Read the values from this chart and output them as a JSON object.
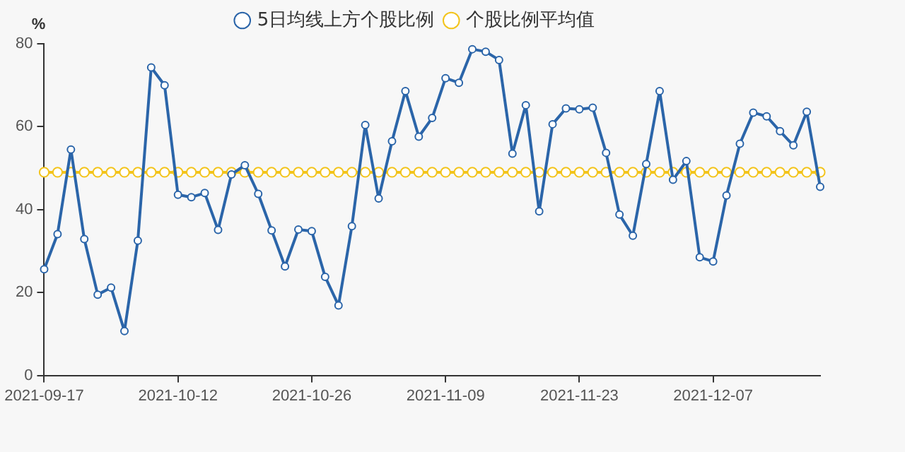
{
  "chart_data": {
    "type": "line",
    "ylabel": "%",
    "categories": [
      "2021-09-17",
      null,
      null,
      null,
      null,
      null,
      null,
      null,
      null,
      null,
      "2021-10-12",
      null,
      null,
      null,
      null,
      null,
      null,
      null,
      null,
      null,
      "2021-10-26",
      null,
      null,
      null,
      null,
      null,
      null,
      null,
      null,
      null,
      "2021-11-09",
      null,
      null,
      null,
      null,
      null,
      null,
      null,
      null,
      null,
      "2021-11-23",
      null,
      null,
      null,
      null,
      null,
      null,
      null,
      null,
      null,
      "2021-12-07",
      null,
      null,
      null,
      null,
      null,
      null,
      null,
      null
    ],
    "series": [
      {
        "name": "5日均线上方个股比例",
        "color": "#2b65a9",
        "values": [
          25.6,
          34.1,
          54.5,
          32.9,
          19.5,
          21.2,
          10.7,
          32.5,
          74.3,
          70.0,
          43.6,
          43.0,
          44.0,
          35.1,
          48.5,
          50.7,
          43.8,
          35.0,
          26.3,
          35.2,
          34.8,
          23.8,
          16.9,
          36.0,
          60.4,
          42.7,
          56.5,
          68.6,
          57.6,
          62.1,
          71.7,
          70.6,
          78.7,
          78.1,
          76.1,
          53.5,
          65.2,
          39.6,
          60.6,
          64.4,
          64.2,
          64.6,
          53.7,
          38.8,
          33.7,
          51.0,
          68.6,
          47.2,
          51.7,
          28.5,
          27.5,
          43.4,
          55.9,
          63.4,
          62.5,
          58.9,
          55.5,
          63.6,
          45.5
        ]
      },
      {
        "name": "个股比例平均值",
        "color": "#f3c41c",
        "values": [
          49,
          49,
          49,
          49,
          49,
          49,
          49,
          49,
          49,
          49,
          49,
          49,
          49,
          49,
          49,
          49,
          49,
          49,
          49,
          49,
          49,
          49,
          49,
          49,
          49,
          49,
          49,
          49,
          49,
          49,
          49,
          49,
          49,
          49,
          49,
          49,
          49,
          49,
          49,
          49,
          49,
          49,
          49,
          49,
          49,
          49,
          49,
          49,
          49,
          49,
          49,
          49,
          49,
          49,
          49,
          49,
          49,
          49,
          49
        ]
      }
    ],
    "ylim": [
      0,
      80
    ],
    "yticks": [
      0,
      20,
      40,
      60,
      80
    ],
    "grid": false,
    "legend": "top",
    "marker": "circle",
    "line_style": "solid"
  }
}
